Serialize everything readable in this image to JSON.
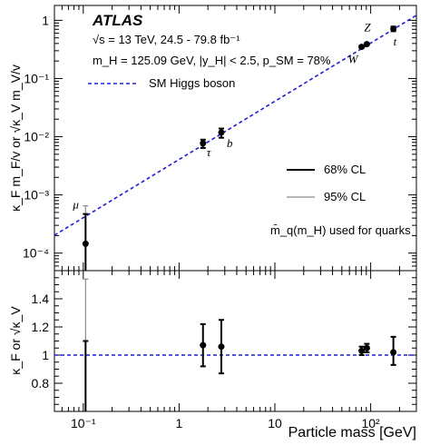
{
  "chart_data": {
    "type": "scatter",
    "experiment": "ATLAS",
    "annotation_lines": [
      "√s = 13 TeV, 24.5 - 79.8 fb⁻¹",
      "m_H = 125.09 GeV, |y_H| < 2.5, p_SM = 78%"
    ],
    "sm_line_label": "SM Higgs boson",
    "legend_68": "68% CL",
    "legend_95": "95% CL",
    "quark_note": "m̄_q(m_H) used for quarks",
    "xlabel": "Particle mass [GeV]",
    "ylabel_top": "κ_F m_F/v or √κ_V m_V/v",
    "ylabel_bottom": "κ_F or √κ_V",
    "x_scale": "log",
    "xlim": [
      0.05,
      300
    ],
    "x_ticks": [
      0.1,
      1,
      10,
      100
    ],
    "x_tick_labels": [
      "10⁻¹",
      "1",
      "10",
      "10²"
    ],
    "top_panel": {
      "y_scale": "log",
      "ylim": [
        5e-05,
        1.8
      ],
      "y_ticks": [
        0.0001,
        0.001,
        0.01,
        0.1,
        1
      ],
      "y_tick_labels": [
        "10⁻⁴",
        "10⁻³",
        "10⁻²",
        "10⁻¹",
        "1"
      ],
      "sm_line": {
        "x": [
          0.05,
          300
        ],
        "y": [
          0.000203,
          1.218
        ]
      },
      "points": [
        {
          "name": "μ",
          "x": 0.1057,
          "y": 0.000145,
          "err68": [
            7e-07,
            0.00047
          ],
          "err95": [
            7e-07,
            0.00065
          ]
        },
        {
          "name": "τ",
          "x": 1.777,
          "y": 0.0077,
          "err68": [
            0.0064,
            0.0089
          ]
        },
        {
          "name": "b",
          "x": 2.76,
          "y": 0.0118,
          "err68": [
            0.0096,
            0.0138
          ]
        },
        {
          "name": "W",
          "x": 80.4,
          "y": 0.35,
          "err68": [
            0.335,
            0.365
          ]
        },
        {
          "name": "Z",
          "x": 91.2,
          "y": 0.39,
          "err68": [
            0.374,
            0.406
          ]
        },
        {
          "name": "t",
          "x": 172.5,
          "y": 0.71,
          "err68": [
            0.65,
            0.78
          ]
        }
      ]
    },
    "bottom_panel": {
      "ylim": [
        0.6,
        1.6
      ],
      "y_ticks": [
        0.8,
        1,
        1.2,
        1.4
      ],
      "y_tick_labels": [
        "0.8",
        "1",
        "1.2",
        "1.4"
      ],
      "sm_value": 1,
      "points": [
        {
          "name": "μ",
          "x": 0.1057,
          "y": 0.61,
          "err68": [
            0.6,
            1.1
          ],
          "err95": [
            0.6,
            1.54
          ]
        },
        {
          "name": "τ",
          "x": 1.777,
          "y": 1.07,
          "err68": [
            0.92,
            1.22
          ]
        },
        {
          "name": "b",
          "x": 2.76,
          "y": 1.06,
          "err68": [
            0.87,
            1.25
          ]
        },
        {
          "name": "W",
          "x": 80.4,
          "y": 1.03,
          "err68": [
            1.0,
            1.06
          ]
        },
        {
          "name": "Z",
          "x": 91.2,
          "y": 1.05,
          "err68": [
            1.02,
            1.08
          ]
        },
        {
          "name": "t",
          "x": 172.5,
          "y": 1.02,
          "err68": [
            0.93,
            1.13
          ]
        }
      ]
    },
    "colors": {
      "sm_line": "#1f1fd6",
      "point": "#000000",
      "err95": "#8c8c8c"
    }
  }
}
